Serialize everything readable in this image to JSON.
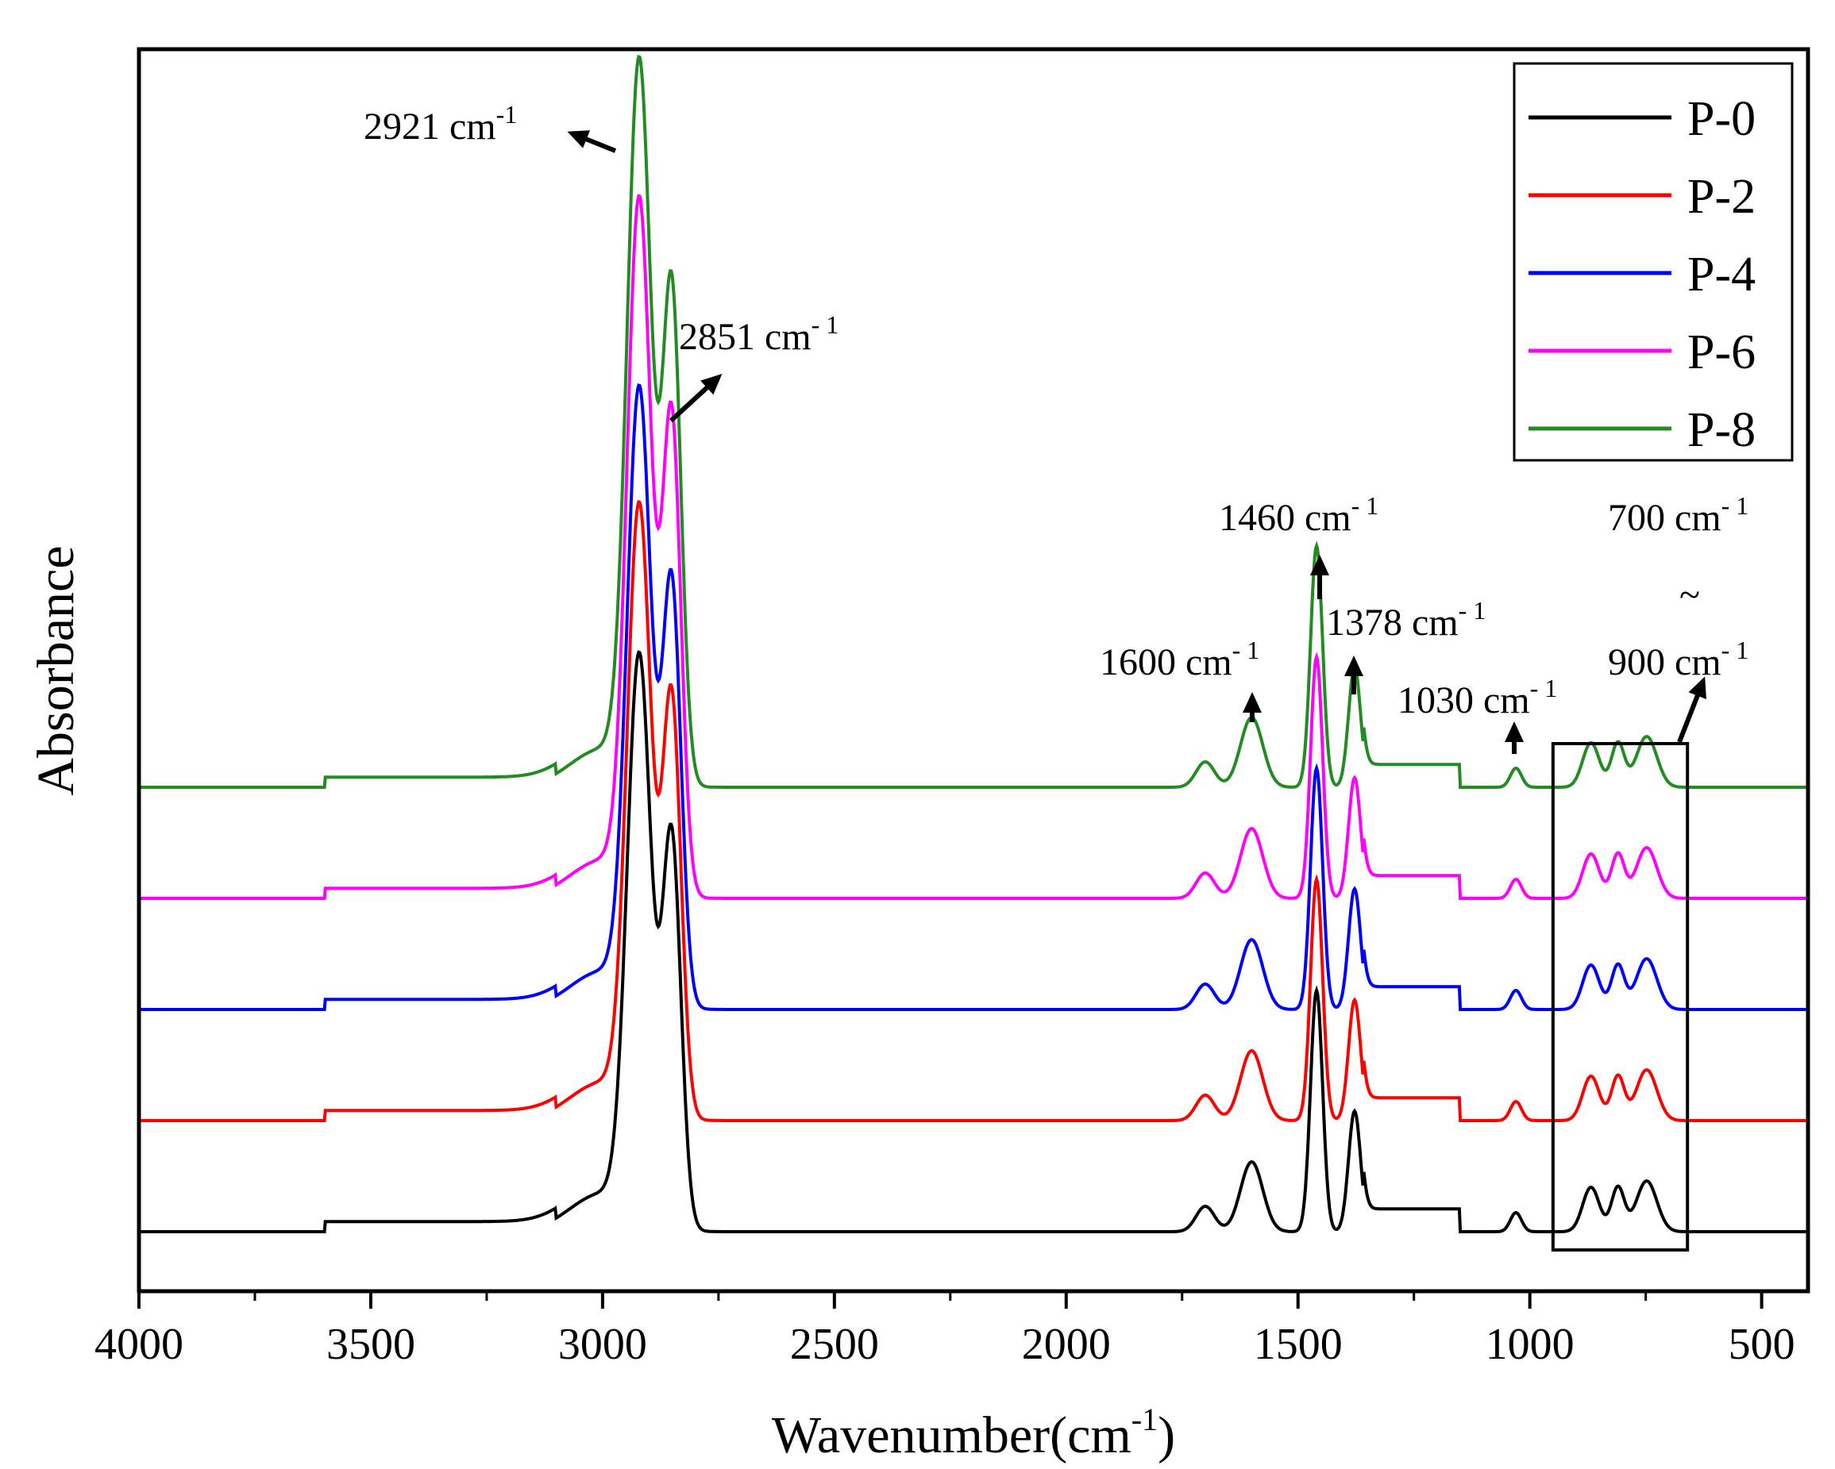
{
  "chart_data": {
    "type": "line",
    "title": "",
    "xlabel": "Wavenumber(cm",
    "xlabel_sup": "-1",
    "xlabel_close": ")",
    "ylabel": "Absorbance",
    "xlim": [
      4000,
      400
    ],
    "x_reversed": true,
    "y_ticks_labeled": false,
    "x_ticks": [
      4000,
      3500,
      3000,
      2500,
      2000,
      1500,
      1000,
      500
    ],
    "x_tick_labels": [
      "4000",
      "3500",
      "3000",
      "2500",
      "2000",
      "1500",
      "1000",
      "500"
    ],
    "legend_position": "top-right",
    "series": [
      {
        "name": "P-0",
        "color": "#000000",
        "offset": 0.0,
        "peak_scale": 1.0
      },
      {
        "name": "P-2",
        "color": "#ff0000",
        "offset": 1.0,
        "peak_scale": 1.07
      },
      {
        "name": "P-4",
        "color": "#0000ff",
        "offset": 2.0,
        "peak_scale": 1.08
      },
      {
        "name": "P-6",
        "color": "#ff00ff",
        "offset": 3.0,
        "peak_scale": 1.22
      },
      {
        "name": "P-8",
        "color": "#228b22",
        "offset": 4.0,
        "peak_scale": 1.27
      }
    ],
    "spectrum_peaks": [
      {
        "center": 2921,
        "height": 4.4,
        "width": 26
      },
      {
        "center": 2851,
        "height": 3.05,
        "width": 20
      },
      {
        "center": 3000,
        "height": 0.3,
        "width": 70
      },
      {
        "center": 1460,
        "height": 1.9,
        "width": 13
      },
      {
        "center": 1378,
        "height": 0.95,
        "width": 13
      },
      {
        "center": 1600,
        "height": 0.55,
        "width": 24
      },
      {
        "center": 1700,
        "height": 0.2,
        "width": 20
      },
      {
        "center": 1030,
        "height": 0.15,
        "width": 12
      },
      {
        "center": 868,
        "height": 0.35,
        "width": 18
      },
      {
        "center": 810,
        "height": 0.35,
        "width": 14
      },
      {
        "center": 748,
        "height": 0.4,
        "width": 22
      }
    ],
    "annotations": [
      {
        "id": "a2921",
        "label": "2921 cm",
        "sup": "-1",
        "wavenumber": 2921,
        "arrow": "left"
      },
      {
        "id": "a2851",
        "label": "2851 cm",
        "sup": "- 1",
        "wavenumber": 2851,
        "arrow": "up-right"
      },
      {
        "id": "a1460",
        "label": "1460 cm",
        "sup": "- 1",
        "wavenumber": 1460,
        "arrow": "up"
      },
      {
        "id": "a1378",
        "label": "1378 cm",
        "sup": "- 1",
        "wavenumber": 1378,
        "arrow": "up"
      },
      {
        "id": "a1600",
        "label": "1600 cm",
        "sup": "- 1",
        "wavenumber": 1600,
        "arrow": "up"
      },
      {
        "id": "a1030",
        "label": "1030 cm",
        "sup": "- 1",
        "wavenumber": 1030,
        "arrow": "up"
      },
      {
        "id": "a700",
        "label": "700 cm",
        "sup": "- 1",
        "wavenumber": 700,
        "arrow": "none"
      },
      {
        "id": "atilde",
        "label": "~",
        "sup": "",
        "wavenumber": 700,
        "arrow": "none"
      },
      {
        "id": "a900",
        "label": "900 cm",
        "sup": "- 1",
        "wavenumber": 900,
        "arrow": "up-right"
      }
    ],
    "highlight_box": {
      "from_wavenumber": 950,
      "to_wavenumber": 660
    }
  }
}
